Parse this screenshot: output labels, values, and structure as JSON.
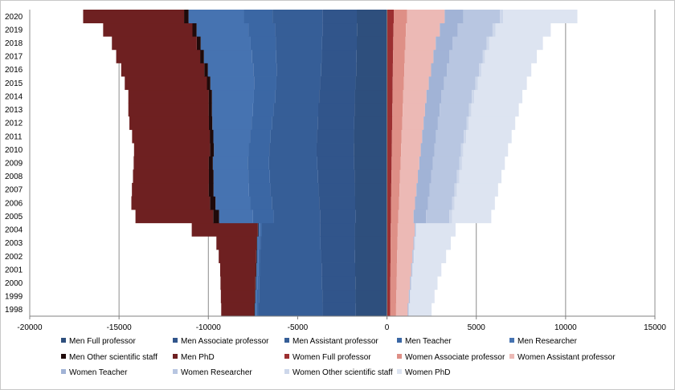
{
  "chart_data": {
    "type": "bar",
    "orientation": "horizontal",
    "stacked": true,
    "title": "",
    "xlabel": "",
    "ylabel": "",
    "xlim": [
      -20000,
      15000
    ],
    "x_ticks": [
      "-20000",
      "-15000",
      "-10000",
      "-5000",
      "0",
      "5000",
      "10000",
      "15000"
    ],
    "grid": "vertical major gridlines",
    "legend_position": "bottom",
    "categories": [
      "1998",
      "1999",
      "2000",
      "2001",
      "2002",
      "2003",
      "2004",
      "2005",
      "2006",
      "2007",
      "2008",
      "2009",
      "2010",
      "2011",
      "2012",
      "2013",
      "2014",
      "2015",
      "2016",
      "2017",
      "2018",
      "2019",
      "2020"
    ],
    "series": [
      {
        "name": "Men Full professor",
        "color": "#2e4f7d",
        "values": [
          -1750,
          -1760,
          -1770,
          -1780,
          -1790,
          -1800,
          -1800,
          -1750,
          -1780,
          -1800,
          -1820,
          -1840,
          -1860,
          -1850,
          -1830,
          -1820,
          -1800,
          -1760,
          -1720,
          -1700,
          -1690,
          -1680,
          -1690
        ]
      },
      {
        "name": "Men Associate professor",
        "color": "#31558b",
        "values": [
          -1850,
          -1860,
          -1870,
          -1880,
          -1900,
          -1920,
          -1950,
          -2000,
          -2020,
          -2030,
          -2040,
          -2060,
          -2080,
          -2070,
          -2050,
          -2030,
          -2000,
          -1980,
          -1960,
          -1950,
          -1940,
          -1930,
          -1920
        ]
      },
      {
        "name": "Men Assistant professor",
        "color": "#365e97",
        "values": [
          -3600,
          -3550,
          -3500,
          -3450,
          -3400,
          -3350,
          -3250,
          -2600,
          -2650,
          -2700,
          -2700,
          -2700,
          -2650,
          -2600,
          -2550,
          -2500,
          -2450,
          -2450,
          -2500,
          -2550,
          -2600,
          -2650,
          -2800
        ]
      },
      {
        "name": "Men Teacher",
        "color": "#3b67a4",
        "values": [
          -100,
          -100,
          -100,
          -100,
          -100,
          -100,
          -100,
          -1150,
          -1200,
          -1200,
          -1200,
          -1200,
          -1150,
          -1150,
          -1150,
          -1150,
          -1200,
          -1250,
          -1300,
          -1350,
          -1400,
          -1500,
          -1600
        ]
      },
      {
        "name": "Men Researcher",
        "color": "#4673b1",
        "values": [
          -100,
          -100,
          -100,
          -100,
          -100,
          -100,
          -100,
          -1900,
          -1950,
          -1980,
          -1950,
          -1950,
          -1950,
          -2050,
          -2200,
          -2300,
          -2350,
          -2450,
          -2550,
          -2700,
          -2800,
          -2900,
          -3100
        ]
      },
      {
        "name": "Men Other scientific staff",
        "color": "#1f0a0a",
        "values": [
          -30,
          -30,
          -30,
          -30,
          -30,
          -30,
          -30,
          -330,
          -310,
          -270,
          -260,
          -230,
          -220,
          -200,
          -190,
          -180,
          -180,
          -190,
          -200,
          -210,
          -220,
          -230,
          -250
        ]
      },
      {
        "name": "Men PhD",
        "color": "#6e2021",
        "values": [
          -1850,
          -1900,
          -1950,
          -2000,
          -2100,
          -2250,
          -3700,
          -4350,
          -4400,
          -4300,
          -4250,
          -4200,
          -4250,
          -4350,
          -4450,
          -4500,
          -4500,
          -4600,
          -4650,
          -4700,
          -4750,
          -5000,
          -5650
        ]
      },
      {
        "name": "Women Full professor",
        "color": "#9c2f31",
        "values": [
          180,
          185,
          190,
          195,
          200,
          205,
          210,
          220,
          230,
          240,
          250,
          260,
          270,
          280,
          290,
          300,
          310,
          320,
          330,
          340,
          350,
          360,
          380
        ]
      },
      {
        "name": "Women Associate professor",
        "color": "#de8f86",
        "values": [
          330,
          340,
          350,
          360,
          370,
          380,
          390,
          420,
          440,
          460,
          480,
          500,
          520,
          540,
          560,
          580,
          600,
          620,
          640,
          660,
          680,
          700,
          750
        ]
      },
      {
        "name": "Women Assistant professor",
        "color": "#ecb9b5",
        "values": [
          650,
          700,
          750,
          800,
          850,
          900,
          950,
          850,
          900,
          950,
          1000,
          1050,
          1100,
          1150,
          1200,
          1250,
          1300,
          1400,
          1500,
          1600,
          1700,
          1900,
          2100
        ]
      },
      {
        "name": "Women Teacher",
        "color": "#a1b3d6",
        "values": [
          30,
          30,
          30,
          30,
          30,
          30,
          30,
          700,
          720,
          730,
          740,
          750,
          760,
          780,
          800,
          820,
          840,
          860,
          880,
          900,
          950,
          1000,
          1050
        ]
      },
      {
        "name": "Women Researcher",
        "color": "#b8c6e1",
        "values": [
          30,
          30,
          30,
          30,
          30,
          30,
          30,
          1300,
          1350,
          1400,
          1450,
          1500,
          1500,
          1550,
          1600,
          1650,
          1700,
          1750,
          1800,
          1850,
          1900,
          1950,
          2050
        ]
      },
      {
        "name": "Women Other scientific staff",
        "color": "#cdd7ea",
        "values": [
          30,
          30,
          30,
          30,
          30,
          30,
          30,
          150,
          150,
          140,
          140,
          140,
          130,
          130,
          130,
          130,
          130,
          130,
          130,
          140,
          150,
          160,
          180
        ]
      },
      {
        "name": "Women PhD",
        "color": "#dde4f1",
        "values": [
          1250,
          1350,
          1450,
          1600,
          1800,
          2000,
          2200,
          2200,
          2250,
          2300,
          2350,
          2400,
          2500,
          2550,
          2600,
          2650,
          2700,
          2750,
          2800,
          2900,
          3000,
          3100,
          4150
        ]
      }
    ]
  }
}
